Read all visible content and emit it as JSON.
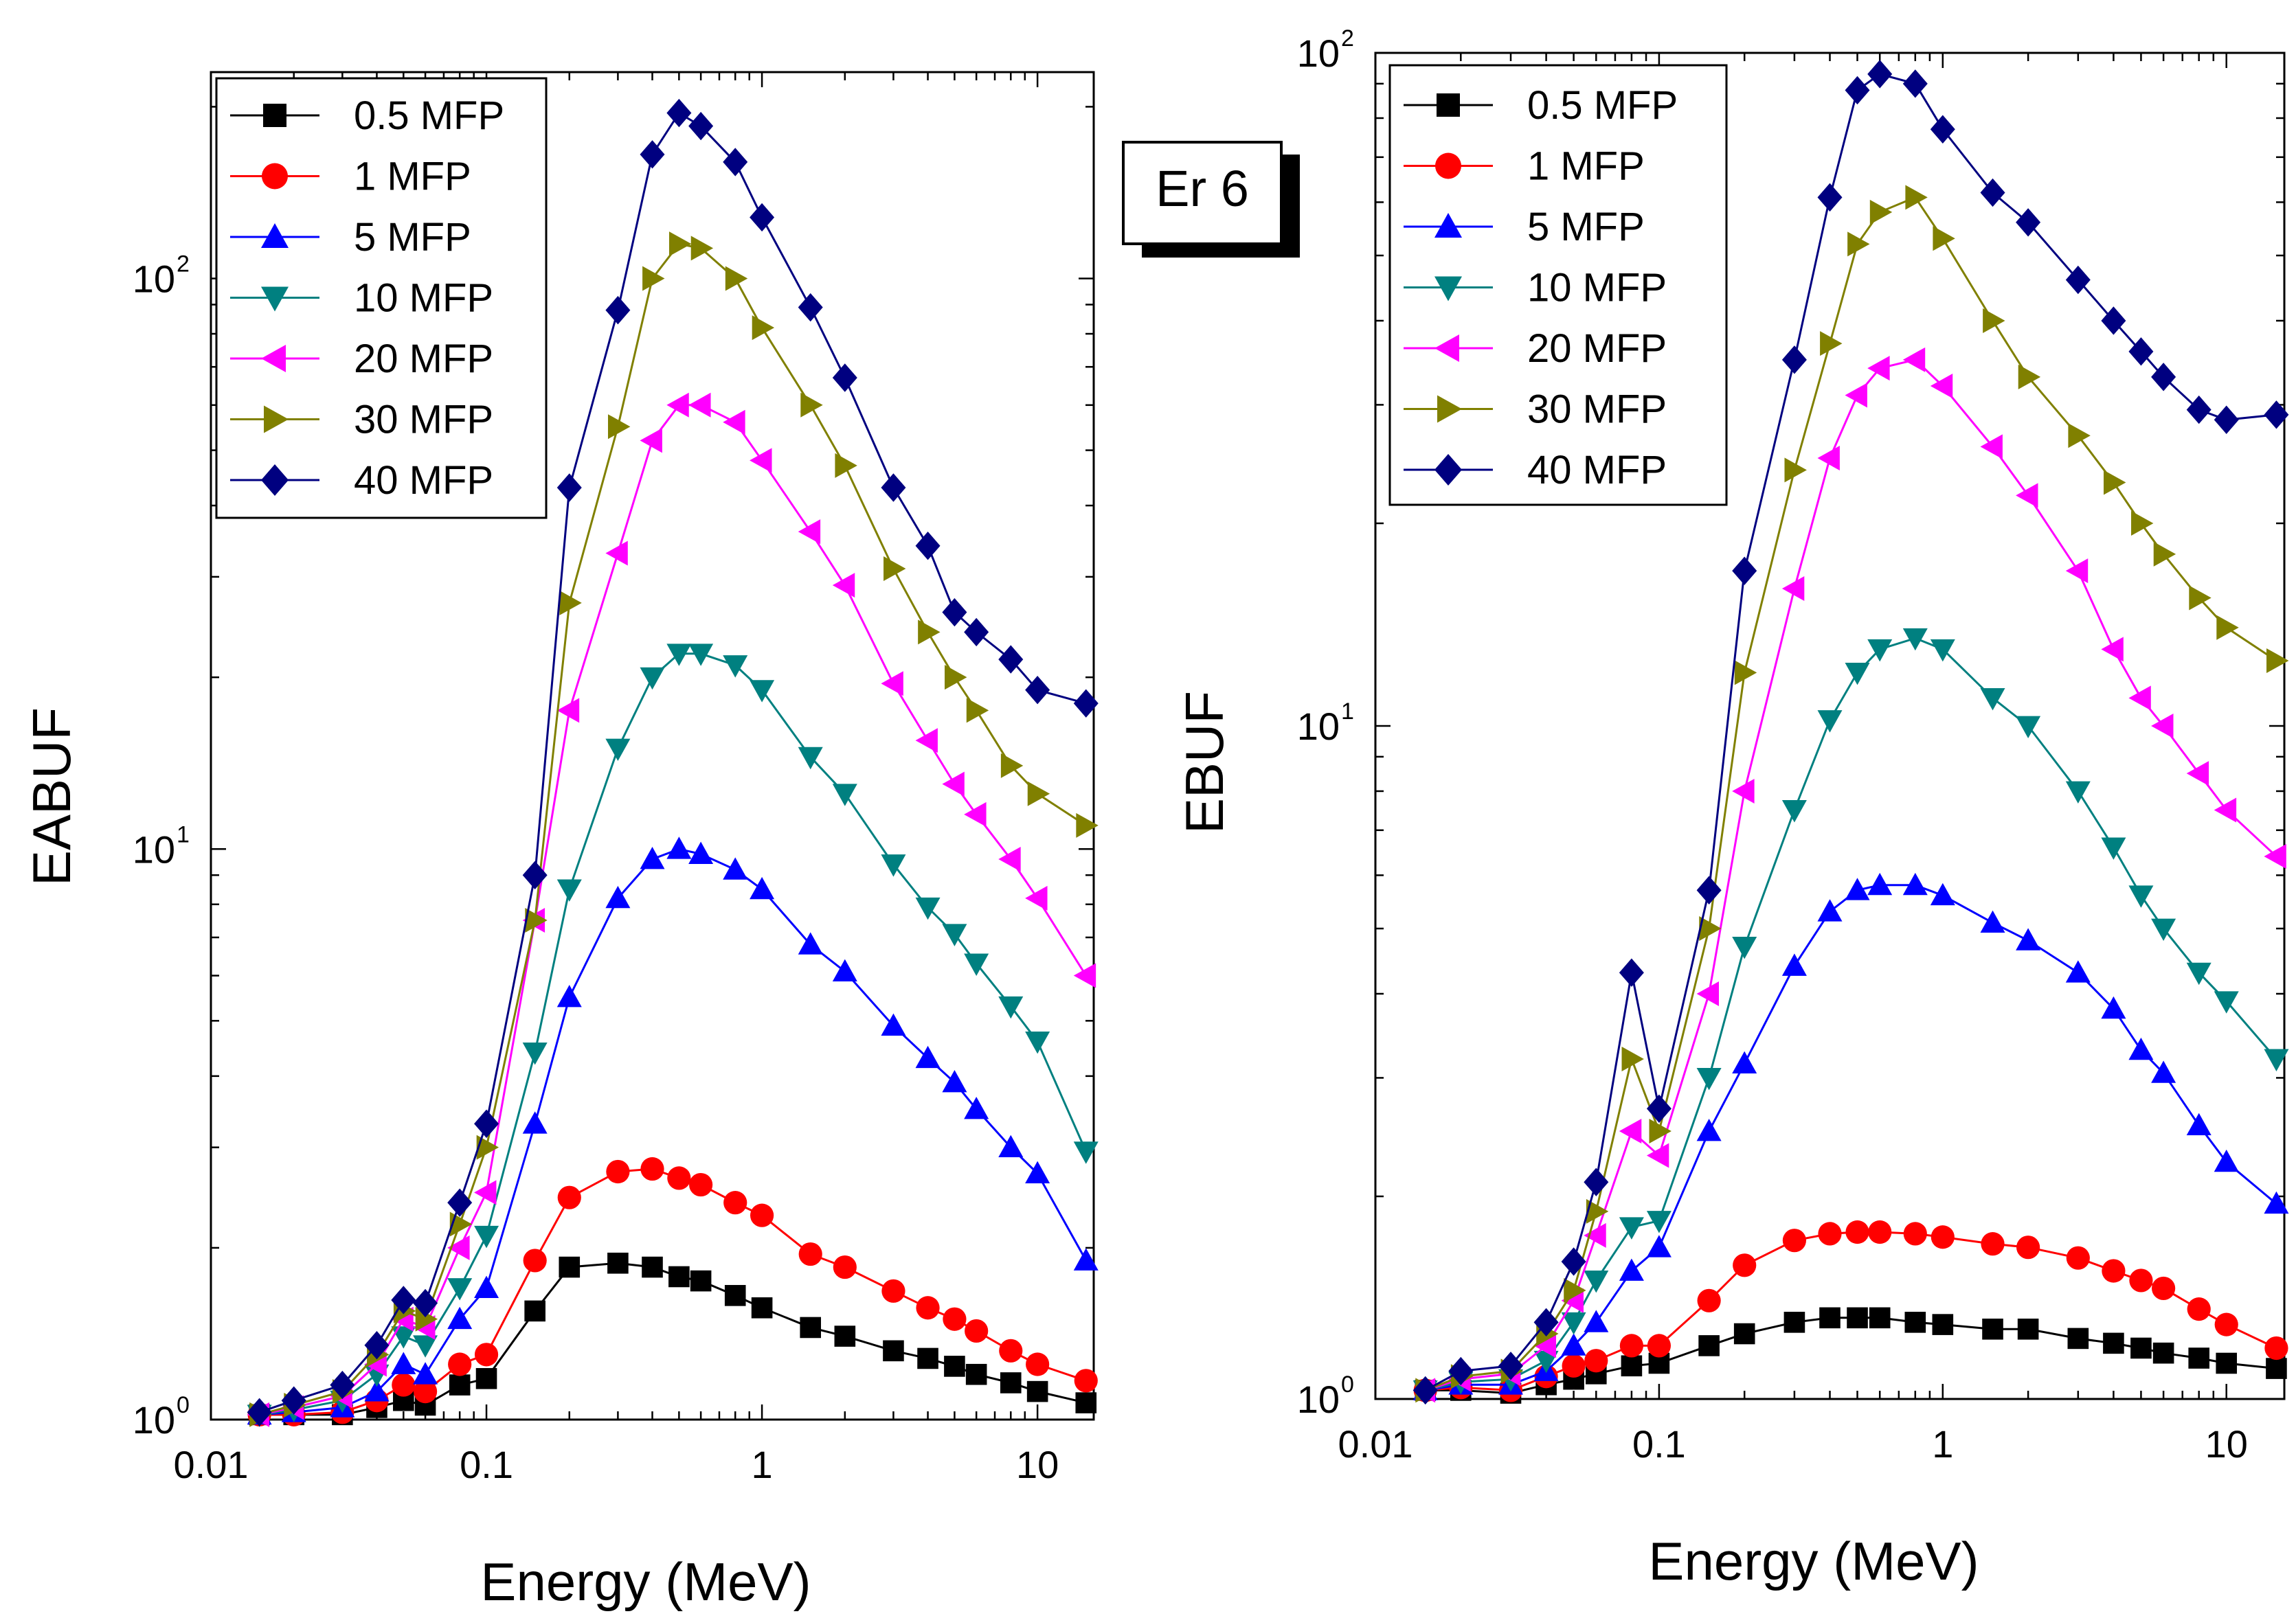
{
  "figure": {
    "label": "Er 6"
  },
  "chart_data": [
    {
      "type": "line",
      "id": "left",
      "title": "",
      "xlabel": "Energy (MeV)",
      "ylabel": "EABUF",
      "xscale": "log",
      "yscale": "log",
      "xlim": [
        0.01,
        16
      ],
      "ylim": [
        1,
        230
      ],
      "legend_position": "top-left",
      "xticks": [
        {
          "value": 0.01,
          "label": "0.01"
        },
        {
          "value": 0.1,
          "label": "0.1"
        },
        {
          "value": 1,
          "label": "1"
        },
        {
          "value": 10,
          "label": "10"
        }
      ],
      "yticks": [
        {
          "value": 1,
          "base": "10",
          "exp": "0"
        },
        {
          "value": 10,
          "base": "10",
          "exp": "1"
        },
        {
          "value": 100,
          "base": "10",
          "exp": "2"
        }
      ],
      "x": [
        0.015,
        0.02,
        0.03,
        0.04,
        0.05,
        0.06,
        0.08,
        0.1,
        0.15,
        0.2,
        0.3,
        0.4,
        0.5,
        0.6,
        0.8,
        1,
        1.5,
        2,
        3,
        4,
        5,
        6,
        8,
        10,
        15
      ],
      "series": [
        {
          "name": "0.5 MFP",
          "color": "#000000",
          "marker": "square",
          "values": [
            1.02,
            1.02,
            1.02,
            1.05,
            1.08,
            1.06,
            1.15,
            1.18,
            1.55,
            1.85,
            1.88,
            1.85,
            1.78,
            1.75,
            1.65,
            1.57,
            1.45,
            1.4,
            1.32,
            1.28,
            1.24,
            1.2,
            1.16,
            1.12,
            1.07
          ]
        },
        {
          "name": "1 MFP",
          "color": "#ff0000",
          "marker": "circle",
          "values": [
            1.02,
            1.02,
            1.03,
            1.08,
            1.15,
            1.12,
            1.25,
            1.3,
            1.9,
            2.45,
            2.72,
            2.75,
            2.65,
            2.58,
            2.4,
            2.28,
            1.95,
            1.85,
            1.68,
            1.57,
            1.5,
            1.43,
            1.32,
            1.25,
            1.17
          ]
        },
        {
          "name": "5 MFP",
          "color": "#0000ff",
          "marker": "triangle-up",
          "values": [
            1.02,
            1.03,
            1.05,
            1.12,
            1.25,
            1.2,
            1.5,
            1.7,
            3.3,
            5.5,
            8.2,
            9.6,
            10.0,
            9.8,
            9.2,
            8.5,
            6.8,
            6.1,
            4.9,
            4.3,
            3.9,
            3.5,
            3.0,
            2.7,
            1.9
          ]
        },
        {
          "name": "10 MFP",
          "color": "#008080",
          "marker": "triangle-down",
          "values": [
            1.02,
            1.04,
            1.08,
            1.2,
            1.4,
            1.35,
            1.7,
            2.1,
            4.4,
            8.5,
            15.0,
            20.0,
            22.0,
            22.0,
            21.0,
            19.0,
            14.5,
            12.5,
            9.4,
            7.9,
            7.1,
            6.3,
            5.3,
            4.6,
            2.95
          ]
        },
        {
          "name": "20 MFP",
          "color": "#ff00ff",
          "marker": "triangle-left",
          "values": [
            1.02,
            1.05,
            1.1,
            1.25,
            1.5,
            1.45,
            2.0,
            2.5,
            7.5,
            17.5,
            33.0,
            52.0,
            60.0,
            60.0,
            56.0,
            48.0,
            36.0,
            29.0,
            19.5,
            15.5,
            13.0,
            11.5,
            9.6,
            8.2,
            6.0
          ]
        },
        {
          "name": "30 MFP",
          "color": "#808000",
          "marker": "triangle-right",
          "values": [
            1.02,
            1.06,
            1.12,
            1.3,
            1.55,
            1.5,
            2.2,
            3.0,
            7.5,
            27.0,
            55.0,
            100.0,
            115.0,
            113.0,
            100.0,
            82.0,
            60.0,
            47.0,
            31.0,
            24.0,
            20.0,
            17.5,
            14.0,
            12.5,
            11.0
          ]
        },
        {
          "name": "40 MFP",
          "color": "#000080",
          "marker": "diamond",
          "values": [
            1.03,
            1.08,
            1.15,
            1.35,
            1.62,
            1.6,
            2.4,
            3.3,
            9.0,
            43.0,
            88.0,
            165.0,
            195.0,
            185.0,
            160.0,
            128.0,
            89.0,
            67.0,
            43.0,
            34.0,
            26.0,
            24.0,
            21.5,
            19.0,
            18.0
          ]
        }
      ]
    },
    {
      "type": "line",
      "id": "right",
      "title": "",
      "xlabel": "Energy (MeV)",
      "ylabel": "EBUF",
      "xscale": "log",
      "yscale": "log",
      "xlim": [
        0.01,
        16
      ],
      "ylim": [
        1,
        100
      ],
      "legend_position": "top-left",
      "xticks": [
        {
          "value": 0.01,
          "label": "0.01"
        },
        {
          "value": 0.1,
          "label": "0.1"
        },
        {
          "value": 1,
          "label": "1"
        },
        {
          "value": 10,
          "label": "10"
        }
      ],
      "yticks": [
        {
          "value": 1,
          "base": "10",
          "exp": "0"
        },
        {
          "value": 10,
          "base": "10",
          "exp": "1"
        },
        {
          "value": 100,
          "base": "10",
          "exp": "2"
        }
      ],
      "x": [
        0.015,
        0.02,
        0.03,
        0.04,
        0.05,
        0.06,
        0.08,
        0.1,
        0.15,
        0.2,
        0.3,
        0.4,
        0.5,
        0.6,
        0.8,
        1,
        1.5,
        2,
        3,
        4,
        5,
        6,
        8,
        10,
        15
      ],
      "series": [
        {
          "name": "0.5 MFP",
          "color": "#000000",
          "marker": "square",
          "values": [
            1.03,
            1.03,
            1.02,
            1.05,
            1.07,
            1.09,
            1.12,
            1.13,
            1.2,
            1.25,
            1.3,
            1.32,
            1.32,
            1.32,
            1.3,
            1.29,
            1.27,
            1.27,
            1.23,
            1.21,
            1.19,
            1.17,
            1.15,
            1.13,
            1.11
          ]
        },
        {
          "name": "1 MFP",
          "color": "#ff0000",
          "marker": "circle",
          "values": [
            1.03,
            1.04,
            1.03,
            1.08,
            1.12,
            1.14,
            1.2,
            1.2,
            1.4,
            1.58,
            1.72,
            1.76,
            1.77,
            1.77,
            1.76,
            1.74,
            1.7,
            1.68,
            1.62,
            1.55,
            1.5,
            1.46,
            1.36,
            1.29,
            1.19
          ]
        },
        {
          "name": "5 MFP",
          "color": "#0000ff",
          "marker": "triangle-up",
          "values": [
            1.03,
            1.05,
            1.05,
            1.1,
            1.2,
            1.3,
            1.55,
            1.68,
            2.5,
            3.15,
            4.4,
            5.3,
            5.7,
            5.8,
            5.8,
            5.6,
            5.1,
            4.8,
            4.3,
            3.8,
            3.3,
            3.05,
            2.55,
            2.25,
            1.95
          ]
        },
        {
          "name": "10 MFP",
          "color": "#008080",
          "marker": "triangle-down",
          "values": [
            1.03,
            1.06,
            1.07,
            1.14,
            1.3,
            1.5,
            1.8,
            1.84,
            3.0,
            4.7,
            7.5,
            10.2,
            12.0,
            13.0,
            13.5,
            13.0,
            11.0,
            10.0,
            8.0,
            6.6,
            5.6,
            5.0,
            4.3,
            3.9,
            3.2
          ]
        },
        {
          "name": "20 MFP",
          "color": "#ff00ff",
          "marker": "triangle-left",
          "values": [
            1.03,
            1.07,
            1.09,
            1.2,
            1.4,
            1.75,
            2.5,
            2.3,
            4.0,
            8.0,
            16.0,
            25.0,
            31.0,
            34.0,
            35.0,
            32.0,
            26.0,
            22.0,
            17.0,
            13.0,
            11.0,
            10.0,
            8.5,
            7.5,
            6.4
          ]
        },
        {
          "name": "30 MFP",
          "color": "#808000",
          "marker": "triangle-right",
          "values": [
            1.03,
            1.08,
            1.1,
            1.25,
            1.45,
            1.9,
            3.2,
            2.5,
            5.0,
            12.0,
            24.0,
            37.0,
            52.0,
            58.0,
            61.0,
            53.0,
            40.0,
            33.0,
            27.0,
            23.0,
            20.0,
            18.0,
            15.5,
            14.0,
            12.5
          ]
        },
        {
          "name": "40 MFP",
          "color": "#000080",
          "marker": "diamond",
          "values": [
            1.03,
            1.1,
            1.12,
            1.3,
            1.6,
            2.1,
            4.3,
            2.7,
            5.7,
            17.0,
            35.0,
            61.0,
            88.0,
            93.0,
            90.0,
            77.0,
            62.0,
            56.0,
            46.0,
            40.0,
            36.0,
            33.0,
            29.5,
            28.5,
            29.0
          ]
        }
      ]
    }
  ]
}
